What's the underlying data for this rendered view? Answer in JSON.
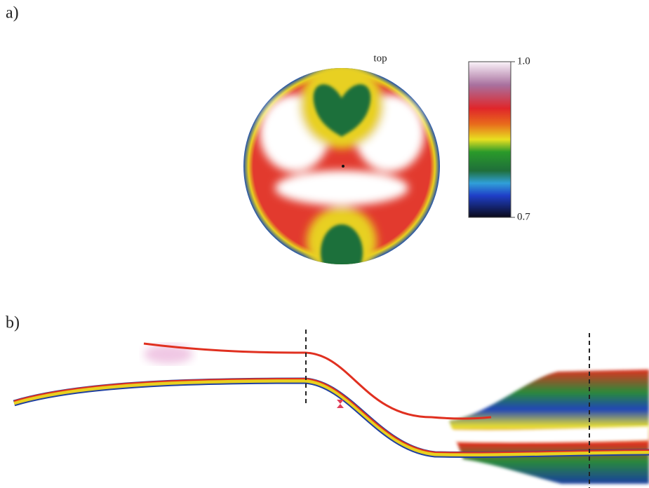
{
  "panels": [
    {
      "label": "a)",
      "view_label": "top"
    },
    {
      "label": "b)"
    }
  ],
  "colorbar": {
    "ticks": [
      {
        "value": 1.0,
        "label": "1.0"
      },
      {
        "value": 0.7,
        "label": "0.7"
      }
    ]
  }
}
